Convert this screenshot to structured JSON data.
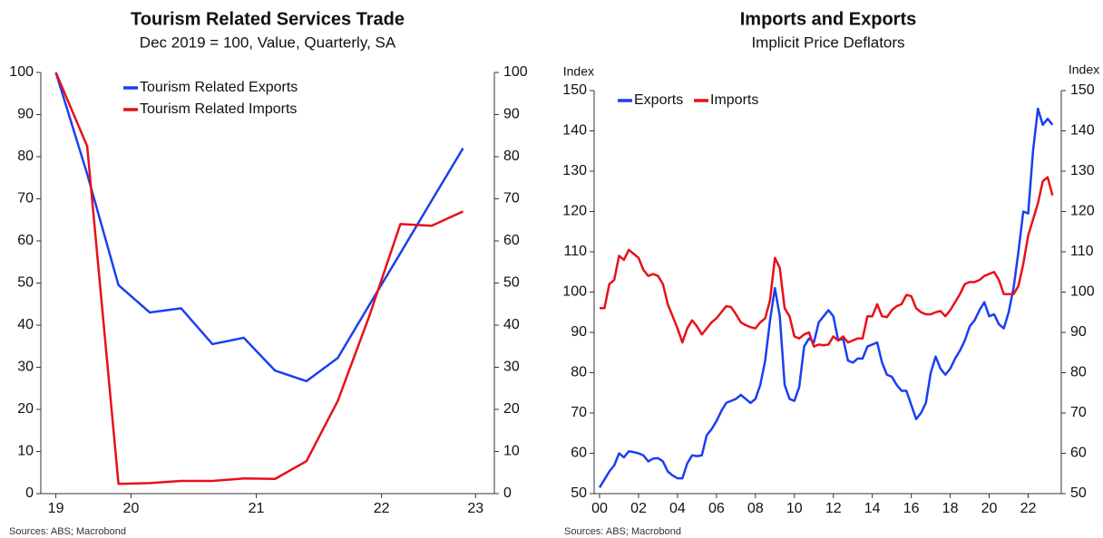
{
  "chart_data": [
    {
      "type": "line",
      "title": "Tourism Related Services Trade",
      "subtitle": "Dec 2019 = 100, Value, Quarterly, SA",
      "x": [
        2019.9,
        2020.15,
        2020.4,
        2020.65,
        2020.9,
        2021.15,
        2021.4,
        2021.65,
        2021.9,
        2022.15,
        2022.4,
        2022.65,
        2022.9,
        2023.15
      ],
      "xlim": [
        2019.78,
        2023.4
      ],
      "xticks": [
        {
          "value": 2019.9,
          "label": "19"
        },
        {
          "value": 2020.5,
          "label": "20"
        },
        {
          "value": 2021.5,
          "label": "21"
        },
        {
          "value": 2022.5,
          "label": "22"
        },
        {
          "value": 2023.25,
          "label": "23"
        }
      ],
      "ylim": [
        0,
        100
      ],
      "yticks": [
        0,
        10,
        20,
        30,
        40,
        50,
        60,
        70,
        80,
        90,
        100
      ],
      "y2lim": [
        0,
        100
      ],
      "y2ticks": [
        0,
        10,
        20,
        30,
        40,
        50,
        60,
        70,
        80,
        90,
        100
      ],
      "series": [
        {
          "name": "Tourism Related Exports",
          "color": "#1a3ff0",
          "values": [
            100,
            75.9,
            49.5,
            43,
            44,
            35.5,
            37,
            29.2,
            26.7,
            32.2,
            44.7,
            57.1,
            69.6,
            82
          ]
        },
        {
          "name": "Tourism Related Imports",
          "color": "#e8101a",
          "values": [
            100,
            82.5,
            2.3,
            2.5,
            3,
            3,
            3.6,
            3.5,
            7.7,
            22,
            42,
            64,
            63.6,
            67
          ]
        }
      ],
      "source": "Sources: ABS; Macrobond"
    },
    {
      "type": "line",
      "title": "Imports and Exports",
      "subtitle": "Implicit Price Deflators",
      "y_label": "Index",
      "y2_label": "Index",
      "x": [
        2000,
        2000.25,
        2000.5,
        2000.75,
        2001,
        2001.25,
        2001.5,
        2001.75,
        2002,
        2002.25,
        2002.5,
        2002.75,
        2003,
        2003.25,
        2003.5,
        2003.75,
        2004,
        2004.25,
        2004.5,
        2004.75,
        2005,
        2005.25,
        2005.5,
        2005.75,
        2006,
        2006.25,
        2006.5,
        2006.75,
        2007,
        2007.25,
        2007.5,
        2007.75,
        2008,
        2008.25,
        2008.5,
        2008.75,
        2009,
        2009.25,
        2009.5,
        2009.75,
        2010,
        2010.25,
        2010.5,
        2010.75,
        2011,
        2011.25,
        2011.5,
        2011.75,
        2012,
        2012.25,
        2012.5,
        2012.75,
        2013,
        2013.25,
        2013.5,
        2013.75,
        2014,
        2014.25,
        2014.5,
        2014.75,
        2015,
        2015.25,
        2015.5,
        2015.75,
        2016,
        2016.25,
        2016.5,
        2016.75,
        2017,
        2017.25,
        2017.5,
        2017.75,
        2018,
        2018.25,
        2018.5,
        2018.75,
        2019,
        2019.25,
        2019.5,
        2019.75,
        2020,
        2020.25,
        2020.5,
        2020.75,
        2021,
        2021.25,
        2021.5,
        2021.75,
        2022,
        2022.25,
        2022.5,
        2022.75,
        2023,
        2023.25
      ],
      "xlim": [
        1999.72,
        2023.7
      ],
      "xticks": [
        {
          "value": 2000,
          "label": "00"
        },
        {
          "value": 2002,
          "label": "02"
        },
        {
          "value": 2004,
          "label": "04"
        },
        {
          "value": 2006,
          "label": "06"
        },
        {
          "value": 2008,
          "label": "08"
        },
        {
          "value": 2010,
          "label": "10"
        },
        {
          "value": 2012,
          "label": "12"
        },
        {
          "value": 2014,
          "label": "14"
        },
        {
          "value": 2016,
          "label": "16"
        },
        {
          "value": 2018,
          "label": "18"
        },
        {
          "value": 2020,
          "label": "20"
        },
        {
          "value": 2022,
          "label": "22"
        }
      ],
      "ylim": [
        50,
        150
      ],
      "yticks": [
        50,
        60,
        70,
        80,
        90,
        100,
        110,
        120,
        130,
        140,
        150
      ],
      "y2lim": [
        50,
        150
      ],
      "y2ticks": [
        50,
        60,
        70,
        80,
        90,
        100,
        110,
        120,
        130,
        140,
        150
      ],
      "series": [
        {
          "name": "Exports",
          "color": "#1a3ff0",
          "values": [
            51.5,
            53.5,
            55.5,
            57,
            60,
            59,
            60.5,
            60.3,
            60,
            59.5,
            58,
            58.7,
            58.8,
            58,
            55.5,
            54.5,
            53.8,
            53.8,
            57.5,
            59.5,
            59.3,
            59.5,
            64.5,
            66,
            68,
            70.5,
            72.5,
            73,
            73.5,
            74.5,
            73.5,
            72.5,
            73.5,
            77,
            83,
            93,
            101,
            94,
            77,
            73.5,
            73,
            76.5,
            86.5,
            88.5,
            87.5,
            92.5,
            94,
            95.5,
            94,
            88,
            88.5,
            83,
            82.5,
            83.5,
            83.5,
            86.5,
            87,
            87.5,
            82.5,
            79.5,
            79,
            77,
            75.5,
            75.5,
            72,
            68.5,
            70,
            72.5,
            80,
            84,
            81,
            79.5,
            81,
            83.5,
            85.5,
            88,
            91.5,
            93,
            95.5,
            97.5,
            94,
            94.5,
            92,
            91,
            95,
            101,
            110,
            120,
            119.5,
            135,
            145.5,
            141.5,
            143,
            141.5
          ]
        },
        {
          "name": "Imports",
          "color": "#e8101a",
          "values": [
            96,
            96,
            102,
            103,
            109,
            108,
            110.5,
            109.5,
            108.5,
            105.5,
            104,
            104.5,
            104,
            102,
            97,
            94,
            91,
            87.5,
            91,
            93,
            91.5,
            89.5,
            91,
            92.5,
            93.5,
            95,
            96.5,
            96.3,
            94.5,
            92.5,
            91.8,
            91.3,
            91,
            92.5,
            93.5,
            98,
            108.5,
            106,
            96,
            94,
            89,
            88.5,
            89.5,
            90,
            86.5,
            87,
            86.8,
            87,
            89,
            88,
            89,
            87.5,
            88,
            88.5,
            88.5,
            94,
            94,
            97,
            94,
            93.8,
            95.5,
            96.5,
            97,
            99.3,
            99,
            96,
            95,
            94.5,
            94.5,
            95,
            95.3,
            94,
            95.5,
            97.5,
            99.5,
            102,
            102.5,
            102.5,
            103,
            104,
            104.5,
            105,
            103,
            99.5,
            99.5,
            99.5,
            101.5,
            107,
            114,
            118,
            122,
            127.5,
            128.5,
            124
          ]
        }
      ],
      "source": "Sources: ABS; Macrobond"
    }
  ]
}
